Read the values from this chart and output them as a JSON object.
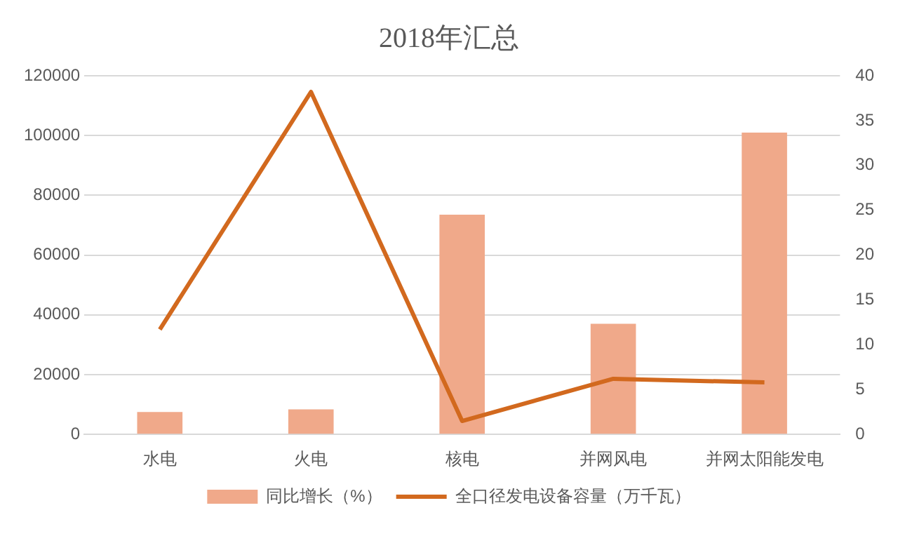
{
  "chart_data": {
    "type": "bar",
    "title": "2018年汇总",
    "categories": [
      "水电",
      "火电",
      "核电",
      "并网风电",
      "并网太阳能发电"
    ],
    "series": [
      {
        "name": "同比增长（%）",
        "color": "#f0a98a",
        "values": [
          7500,
          8400,
          73500,
          37000,
          101000
        ]
      },
      {
        "name": "全口径发电设备容量（万千瓦）",
        "type": "line",
        "axis": "y2",
        "color": "#d2691e",
        "values": [
          11.7,
          38.2,
          1.5,
          6.2,
          5.8
        ]
      }
    ],
    "ylim": [
      0,
      120000
    ],
    "yticks": [
      0,
      20000,
      40000,
      60000,
      80000,
      100000,
      120000
    ],
    "y2lim": [
      0,
      40
    ],
    "y2ticks": [
      0,
      5,
      10,
      15,
      20,
      25,
      30,
      35,
      40
    ],
    "grid": "y",
    "legend": "bottom",
    "marker": "none"
  }
}
